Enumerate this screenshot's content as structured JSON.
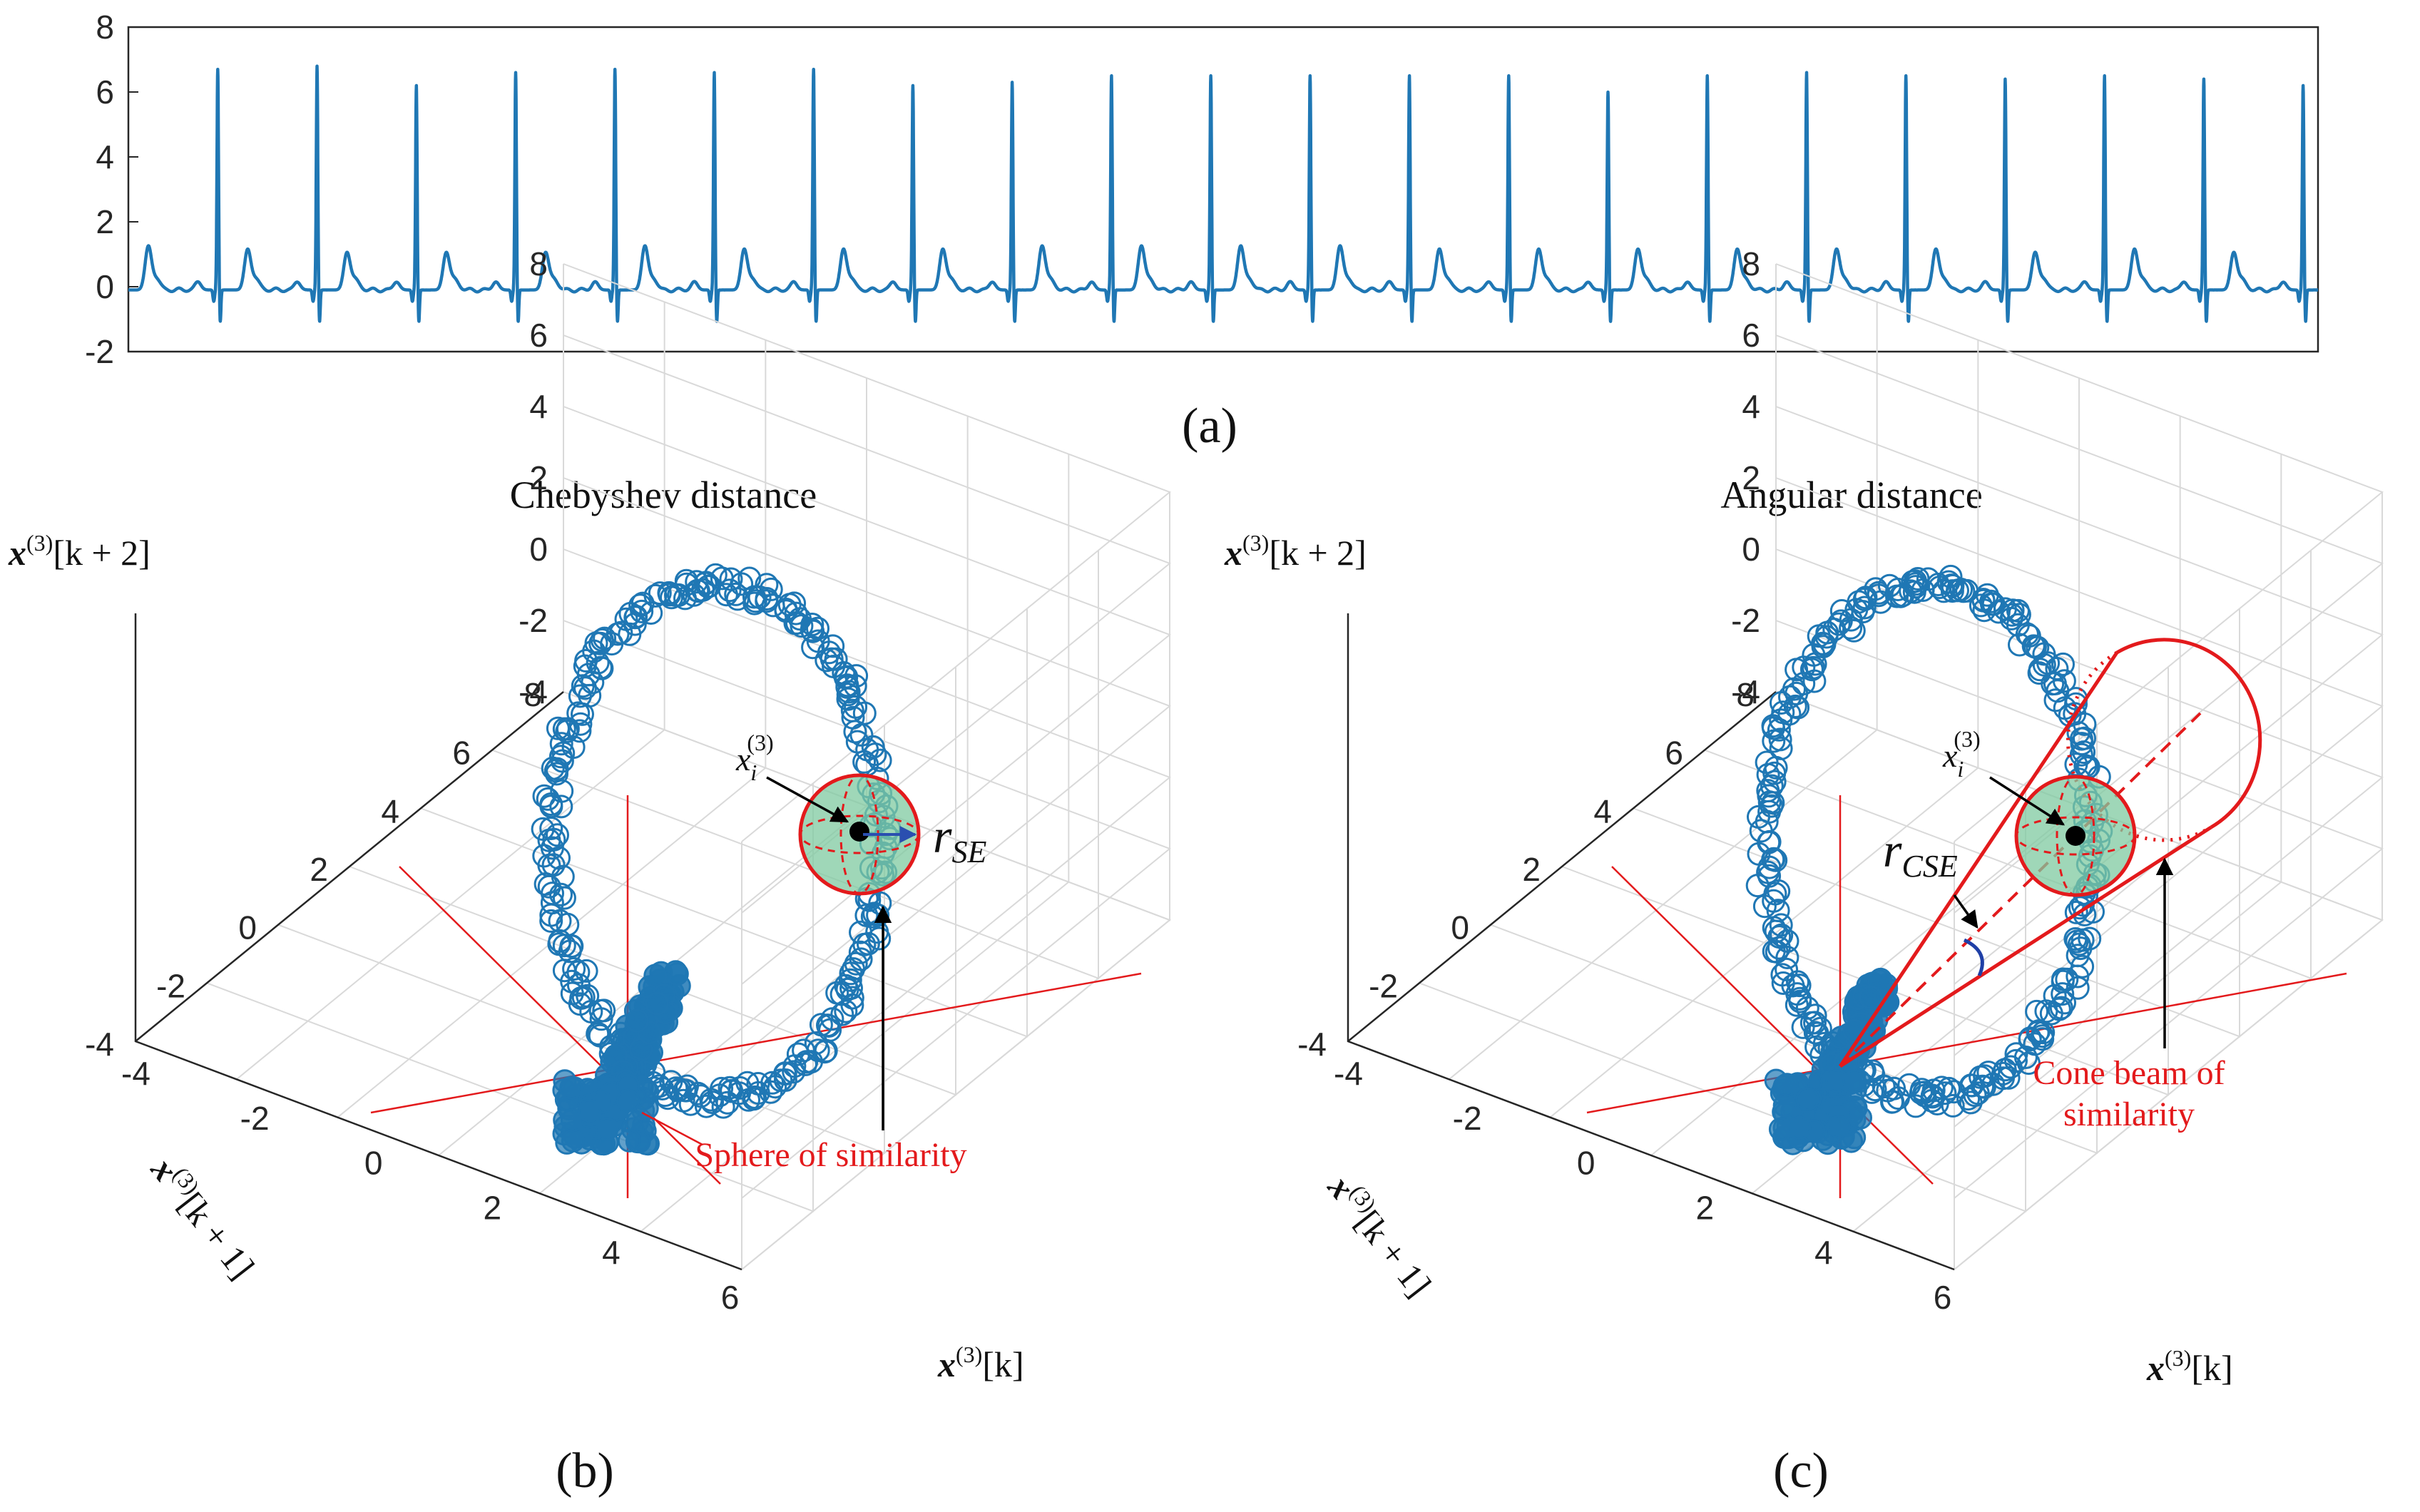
{
  "chart_data": [
    {
      "type": "line",
      "panel_label": "(a)",
      "ylim": [
        -2,
        8
      ],
      "y_ticks": [
        "8",
        "6",
        "4",
        "2",
        "0",
        "-2"
      ],
      "series": [
        {
          "color": "#1f77b4",
          "baseline": -0.1,
          "r_peak_values": [
            6.7,
            6.8,
            6.2,
            6.6,
            6.7,
            6.6,
            6.7,
            6.2,
            6.3,
            6.5,
            6.5,
            6.5,
            6.5,
            6.5,
            6.0,
            6.5,
            6.6,
            6.5,
            6.4,
            6.5,
            6.4,
            6.2
          ],
          "t_wave_values": [
            1.2,
            1.1,
            1.0,
            1.0,
            1.0,
            1.2,
            1.1,
            1.1,
            1.1,
            1.2,
            1.2,
            1.2,
            1.2,
            1.1,
            1.1,
            1.1,
            1.1,
            1.1,
            1.1,
            1.0,
            1.1,
            1.0
          ],
          "s_wave_value": -1.1,
          "beats": 22
        }
      ]
    },
    {
      "type": "scatter",
      "panel_label": "(b)",
      "title": "Chebyshev distance",
      "xlabel": "x(3)[k]",
      "ylabel": "x(3)[k + 1]",
      "zlabel": "x(3)[k + 2]",
      "x_ticks": [
        "-4",
        "-2",
        "0",
        "2",
        "4",
        "6"
      ],
      "y_ticks": [
        "-4",
        "-2",
        "0",
        "2",
        "4",
        "6",
        "8"
      ],
      "z_ticks": [
        "8",
        "6",
        "4",
        "2",
        "0",
        "-2",
        "-4"
      ],
      "marker": "open-circle",
      "color": "#1f77b4",
      "grid": true,
      "annotations": {
        "point_label": "x_i^(3)",
        "point_base": "x",
        "point_sub": "i",
        "point_sup": "(3)",
        "radius_label_base": "r",
        "radius_label_sub": "SE",
        "region_label": "Sphere of similarity"
      }
    },
    {
      "type": "scatter",
      "panel_label": "(c)",
      "title": "Angular distance",
      "xlabel": "x(3)[k]",
      "ylabel": "x(3)[k + 1]",
      "zlabel": "x(3)[k + 2]",
      "x_ticks": [
        "-4",
        "-2",
        "0",
        "2",
        "4",
        "6"
      ],
      "y_ticks": [
        "-4",
        "-2",
        "0",
        "2",
        "4",
        "6",
        "8"
      ],
      "z_ticks": [
        "8",
        "6",
        "4",
        "2",
        "0",
        "-2",
        "-4"
      ],
      "marker": "open-circle",
      "color": "#1f77b4",
      "grid": true,
      "annotations": {
        "point_label": "x_i^(3)",
        "point_base": "x",
        "point_sub": "i",
        "point_sup": "(3)",
        "radius_label_base": "r",
        "radius_label_sub": "CSE",
        "region_label_line1": "Cone beam of",
        "region_label_line2": "similarity"
      }
    }
  ],
  "axis_label_parts": {
    "x_bold": "x",
    "sup": "(3)",
    "k": "[k]",
    "k1": "[k + 1]",
    "k2": "[k + 2]"
  },
  "colors": {
    "signal": "#1f77b4",
    "annotation": "#e31a1c",
    "sphere_fill": "#7fc9a0",
    "arrow": "#000000",
    "angle_arc": "#1f3fa6"
  }
}
